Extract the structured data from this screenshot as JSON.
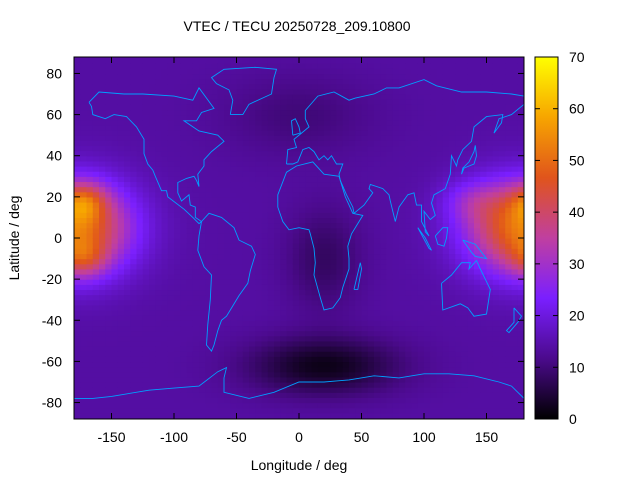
{
  "chart_data": {
    "type": "heatmap",
    "title": "VTEC / TECU 20250728_209.10800",
    "xlabel": "Longitude / deg",
    "ylabel": "Latitude / deg",
    "xlim": [
      -180,
      180
    ],
    "ylim": [
      -88,
      88
    ],
    "x_ticks": [
      -150,
      -100,
      -50,
      0,
      50,
      100,
      150
    ],
    "y_ticks": [
      80,
      60,
      40,
      20,
      0,
      -20,
      -40,
      -60,
      -80
    ],
    "colorbar": {
      "range": [
        0,
        70
      ],
      "ticks": [
        0,
        10,
        20,
        30,
        40,
        50,
        60,
        70
      ],
      "palette": [
        "#000000",
        "#4b0a8c",
        "#7a1fff",
        "#c03fa0",
        "#e0541c",
        "#f7a500",
        "#ffff00"
      ]
    },
    "overlay": "coastlines",
    "overlay_color": "#00a0ff",
    "value_field": {
      "background": 14,
      "peaks": [
        {
          "lon": 180,
          "lat": 5,
          "amp": 38,
          "lon_width": 45,
          "lat_width": 22
        },
        {
          "lon": -172,
          "lat": 18,
          "amp": 16,
          "lon_width": 18,
          "lat_width": 9
        },
        {
          "lon": -172,
          "lat": -10,
          "amp": 12,
          "lon_width": 18,
          "lat_width": 9
        },
        {
          "lon": 140,
          "lat": 18,
          "amp": 8,
          "lon_width": 25,
          "lat_width": 10
        }
      ],
      "troughs": [
        {
          "lon": 20,
          "lat": -62,
          "amp": 12,
          "lon_width": 60,
          "lat_width": 14
        },
        {
          "lon": 20,
          "lat": -10,
          "amp": 6,
          "lon_width": 30,
          "lat_width": 25
        },
        {
          "lon": 0,
          "lat": 60,
          "amp": 4,
          "lon_width": 60,
          "lat_width": 20
        }
      ]
    }
  }
}
